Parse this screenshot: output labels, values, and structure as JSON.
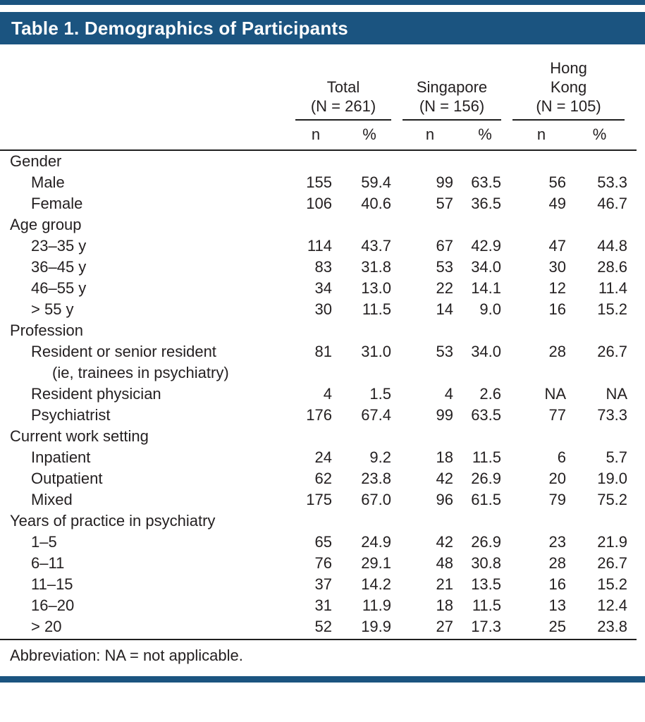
{
  "title": "Table 1. Demographics of Participants",
  "colors": {
    "accent": "#1b5480",
    "rule": "#1f1f1f",
    "text": "#231f20"
  },
  "columns": {
    "groups": [
      {
        "name": "Total",
        "n": "(N = 261)"
      },
      {
        "name": "Singapore",
        "n": "(N = 156)"
      },
      {
        "name": "Hong Kong",
        "n": "(N = 105)"
      }
    ],
    "sub": [
      "n",
      "%"
    ]
  },
  "rows": [
    {
      "type": "group",
      "label": "Gender"
    },
    {
      "type": "item",
      "label": "Male",
      "values": [
        "155",
        "59.4",
        "99",
        "63.5",
        "56",
        "53.3"
      ]
    },
    {
      "type": "item",
      "label": "Female",
      "values": [
        "106",
        "40.6",
        "57",
        "36.5",
        "49",
        "46.7"
      ]
    },
    {
      "type": "group",
      "label": "Age group"
    },
    {
      "type": "item",
      "label": "23–35 y",
      "values": [
        "114",
        "43.7",
        "67",
        "42.9",
        "47",
        "44.8"
      ]
    },
    {
      "type": "item",
      "label": "36–45 y",
      "values": [
        "83",
        "31.8",
        "53",
        "34.0",
        "30",
        "28.6"
      ]
    },
    {
      "type": "item",
      "label": "46–55 y",
      "values": [
        "34",
        "13.0",
        "22",
        "14.1",
        "12",
        "11.4"
      ]
    },
    {
      "type": "item",
      "label": "> 55 y",
      "values": [
        "30",
        "11.5",
        "14",
        "9.0",
        "16",
        "15.2"
      ]
    },
    {
      "type": "group",
      "label": "Profession"
    },
    {
      "type": "item",
      "label": "Resident or senior resident",
      "label2": "(ie, trainees in psychiatry)",
      "values": [
        "81",
        "31.0",
        "53",
        "34.0",
        "28",
        "26.7"
      ]
    },
    {
      "type": "item",
      "label": "Resident physician",
      "values": [
        "4",
        "1.5",
        "4",
        "2.6",
        "NA",
        "NA"
      ]
    },
    {
      "type": "item",
      "label": "Psychiatrist",
      "values": [
        "176",
        "67.4",
        "99",
        "63.5",
        "77",
        "73.3"
      ]
    },
    {
      "type": "group",
      "label": "Current work setting"
    },
    {
      "type": "item",
      "label": "Inpatient",
      "values": [
        "24",
        "9.2",
        "18",
        "11.5",
        "6",
        "5.7"
      ]
    },
    {
      "type": "item",
      "label": "Outpatient",
      "values": [
        "62",
        "23.8",
        "42",
        "26.9",
        "20",
        "19.0"
      ]
    },
    {
      "type": "item",
      "label": "Mixed",
      "values": [
        "175",
        "67.0",
        "96",
        "61.5",
        "79",
        "75.2"
      ]
    },
    {
      "type": "group",
      "label": "Years of practice in psychiatry"
    },
    {
      "type": "item",
      "label": "1–5",
      "values": [
        "65",
        "24.9",
        "42",
        "26.9",
        "23",
        "21.9"
      ]
    },
    {
      "type": "item",
      "label": "6–11",
      "values": [
        "76",
        "29.1",
        "48",
        "30.8",
        "28",
        "26.7"
      ]
    },
    {
      "type": "item",
      "label": "11–15",
      "values": [
        "37",
        "14.2",
        "21",
        "13.5",
        "16",
        "15.2"
      ]
    },
    {
      "type": "item",
      "label": "16–20",
      "values": [
        "31",
        "11.9",
        "18",
        "11.5",
        "13",
        "12.4"
      ]
    },
    {
      "type": "item",
      "label": "> 20",
      "values": [
        "52",
        "19.9",
        "27",
        "17.3",
        "25",
        "23.8"
      ]
    }
  ],
  "footnote": "Abbreviation: NA = not applicable."
}
